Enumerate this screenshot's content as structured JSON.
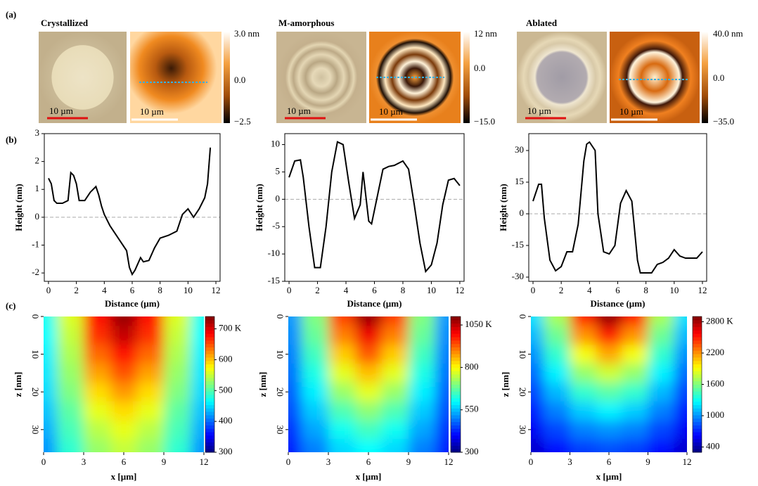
{
  "panel_labels": [
    "(a)",
    "(b)",
    "(c)"
  ],
  "images": [
    {
      "title": "Crystallized",
      "color": "#2a7ab8",
      "scale_bar_labels": [
        "10 µm",
        "10 µm"
      ],
      "colorbar_labels": [
        "3.0 nm",
        "0.0",
        "−2.5"
      ]
    },
    {
      "title": "M-amorphous",
      "color": "#e02020",
      "scale_bar_labels": [
        "10 µm",
        "10 µm"
      ],
      "colorbar_labels": [
        "12 nm",
        "0.0",
        "−15.0"
      ]
    },
    {
      "title": "Ablated",
      "color": "#000000",
      "scale_bar_labels": [
        "10 µm",
        "10 µm"
      ],
      "colorbar_labels": [
        "40.0 nm",
        "0.0",
        "−35.0"
      ]
    }
  ],
  "chart_data": [
    {
      "type": "line",
      "xlabel": "Distance (µm)",
      "ylabel": "Height (nm)",
      "color": "#000000",
      "zero_line": true,
      "x": [
        0,
        0.2,
        0.4,
        0.6,
        1.0,
        1.4,
        1.6,
        1.8,
        2.0,
        2.2,
        2.6,
        3.0,
        3.4,
        3.6,
        3.8,
        4.0,
        4.4,
        4.8,
        5.2,
        5.6,
        5.8,
        6.0,
        6.2,
        6.6,
        6.8,
        7.2,
        7.6,
        8.0,
        8.6,
        9.2,
        9.6,
        10.0,
        10.4,
        10.8,
        11.2,
        11.4,
        11.6
      ],
      "values": [
        1.4,
        1.2,
        0.6,
        0.5,
        0.5,
        0.6,
        1.6,
        1.5,
        1.2,
        0.6,
        0.6,
        0.9,
        1.1,
        0.8,
        0.4,
        0.1,
        -0.3,
        -0.6,
        -0.9,
        -1.2,
        -1.8,
        -2.05,
        -1.9,
        -1.45,
        -1.6,
        -1.55,
        -1.1,
        -0.75,
        -0.65,
        -0.5,
        0.1,
        0.3,
        0.0,
        0.3,
        0.7,
        1.2,
        2.5
      ],
      "xlim": [
        -0.3,
        12.3
      ],
      "xticks": [
        0,
        2,
        4,
        6,
        8,
        10,
        12
      ],
      "ylim": [
        -2.3,
        3
      ],
      "yticks": [
        -2,
        -1,
        0,
        1,
        2,
        3
      ]
    },
    {
      "type": "line",
      "xlabel": "Distance (µm)",
      "ylabel": "Height (nm)",
      "color": "#000000",
      "zero_line": true,
      "x": [
        0,
        0.4,
        0.8,
        1.0,
        1.4,
        1.8,
        2.2,
        2.6,
        3.0,
        3.4,
        3.8,
        4.2,
        4.6,
        5.0,
        5.2,
        5.6,
        5.8,
        6.2,
        6.6,
        7.0,
        7.4,
        8.0,
        8.4,
        8.8,
        9.2,
        9.6,
        10.0,
        10.4,
        10.8,
        11.2,
        11.6,
        12.0
      ],
      "values": [
        4,
        7,
        7.2,
        4,
        -5,
        -12.5,
        -12.5,
        -5,
        5,
        10.5,
        10,
        3,
        -3.5,
        -1,
        5,
        -4,
        -4.5,
        0.5,
        5.5,
        6,
        6.2,
        7,
        5.5,
        -1,
        -8,
        -13.2,
        -12,
        -8,
        -1,
        3.5,
        3.8,
        2.5
      ],
      "xlim": [
        -0.3,
        12.3
      ],
      "xticks": [
        0,
        2,
        4,
        6,
        8,
        10,
        12
      ],
      "ylim": [
        -15,
        12
      ],
      "yticks": [
        -15,
        -10,
        -5,
        0,
        5,
        10
      ]
    },
    {
      "type": "line",
      "xlabel": "Distance (µm)",
      "ylabel": "Height (nm)",
      "color": "#000000",
      "zero_line": true,
      "x": [
        0,
        0.4,
        0.6,
        0.8,
        1.2,
        1.6,
        2.0,
        2.4,
        2.8,
        3.2,
        3.6,
        3.8,
        4.0,
        4.4,
        4.6,
        5.0,
        5.4,
        5.8,
        6.2,
        6.6,
        7.0,
        7.4,
        7.6,
        8.0,
        8.4,
        8.8,
        9.2,
        9.6,
        10.0,
        10.4,
        10.8,
        11.2,
        11.6,
        12.0
      ],
      "values": [
        6,
        14,
        14,
        -2,
        -22,
        -27,
        -25,
        -18,
        -18,
        -5,
        25,
        33,
        34,
        30,
        0,
        -18,
        -19,
        -15,
        5,
        11,
        6,
        -22,
        -28,
        -28,
        -28,
        -24,
        -23,
        -21,
        -17,
        -20,
        -21,
        -21,
        -21,
        -18
      ],
      "xlim": [
        -0.3,
        12.3
      ],
      "xticks": [
        0,
        2,
        4,
        6,
        8,
        10,
        12
      ],
      "ylim": [
        -32,
        38
      ],
      "yticks": [
        -30,
        -15,
        0,
        15,
        30
      ]
    },
    {
      "type": "heatmap",
      "xlabel": "x [µm]",
      "ylabel": "z [nm]",
      "x": [
        0,
        2,
        4,
        6,
        8,
        10,
        12
      ],
      "y": [
        0,
        5,
        10,
        15,
        20,
        25,
        30,
        35
      ],
      "values": [
        [
          470,
          560,
          680,
          730,
          680,
          560,
          470
        ],
        [
          465,
          550,
          665,
          710,
          665,
          550,
          465
        ],
        [
          460,
          540,
          640,
          680,
          640,
          540,
          460
        ],
        [
          455,
          530,
          615,
          650,
          615,
          530,
          455
        ],
        [
          450,
          520,
          590,
          620,
          590,
          520,
          450
        ],
        [
          440,
          505,
          565,
          590,
          565,
          505,
          440
        ],
        [
          430,
          495,
          545,
          565,
          545,
          495,
          430
        ],
        [
          420,
          485,
          530,
          550,
          530,
          485,
          420
        ]
      ],
      "xlim": [
        0,
        12
      ],
      "xticks": [
        0,
        3,
        6,
        9,
        12
      ],
      "ylim": [
        0,
        36
      ],
      "yticks": [
        0,
        10,
        20,
        30
      ],
      "zlim": [
        300,
        740
      ],
      "zticks": [
        300,
        400,
        500,
        600,
        {
          "value": 700,
          "label": "700 K"
        }
      ]
    },
    {
      "type": "heatmap",
      "xlabel": "x [µm]",
      "ylabel": "z [nm]",
      "x": [
        0,
        2,
        4,
        6,
        8,
        10,
        12
      ],
      "y": [
        0,
        5,
        10,
        15,
        20,
        25,
        30,
        35
      ],
      "values": [
        [
          520,
          700,
          950,
          1080,
          950,
          700,
          520
        ],
        [
          510,
          680,
          900,
          1010,
          900,
          680,
          510
        ],
        [
          500,
          650,
          840,
          930,
          840,
          650,
          500
        ],
        [
          490,
          620,
          780,
          850,
          780,
          620,
          490
        ],
        [
          475,
          590,
          720,
          780,
          720,
          590,
          475
        ],
        [
          460,
          560,
          660,
          710,
          660,
          560,
          460
        ],
        [
          440,
          530,
          610,
          650,
          610,
          530,
          440
        ],
        [
          420,
          500,
          570,
          600,
          570,
          500,
          420
        ]
      ],
      "xlim": [
        0,
        12
      ],
      "xticks": [
        0,
        3,
        6,
        9,
        12
      ],
      "ylim": [
        0,
        36
      ],
      "yticks": [
        0,
        10,
        20,
        30
      ],
      "zlim": [
        300,
        1100
      ],
      "zticks": [
        300,
        550,
        800,
        {
          "value": 1050,
          "label": "1050 K"
        }
      ]
    },
    {
      "type": "heatmap",
      "xlabel": "x [µm]",
      "ylabel": "z [nm]",
      "x": [
        0,
        2,
        4,
        6,
        8,
        10,
        12
      ],
      "y": [
        0,
        5,
        10,
        15,
        20,
        25,
        30,
        35
      ],
      "values": [
        [
          1200,
          1700,
          2500,
          2850,
          2500,
          1700,
          1200
        ],
        [
          1100,
          1550,
          2200,
          2500,
          2200,
          1550,
          1100
        ],
        [
          1000,
          1400,
          1900,
          2150,
          1900,
          1400,
          1000
        ],
        [
          900,
          1250,
          1650,
          1800,
          1650,
          1250,
          900
        ],
        [
          800,
          1100,
          1400,
          1500,
          1400,
          1100,
          800
        ],
        [
          700,
          950,
          1150,
          1250,
          1150,
          950,
          700
        ],
        [
          600,
          800,
          950,
          1000,
          950,
          800,
          600
        ],
        [
          500,
          650,
          780,
          820,
          780,
          650,
          500
        ]
      ],
      "xlim": [
        0,
        12
      ],
      "xticks": [
        0,
        3,
        6,
        9,
        12
      ],
      "ylim": [
        0,
        36
      ],
      "yticks": [
        0,
        10,
        20,
        30
      ],
      "zlim": [
        300,
        2900
      ],
      "zticks": [
        400,
        1000,
        1600,
        2200,
        {
          "value": 2800,
          "label": "2800 K"
        }
      ]
    }
  ]
}
